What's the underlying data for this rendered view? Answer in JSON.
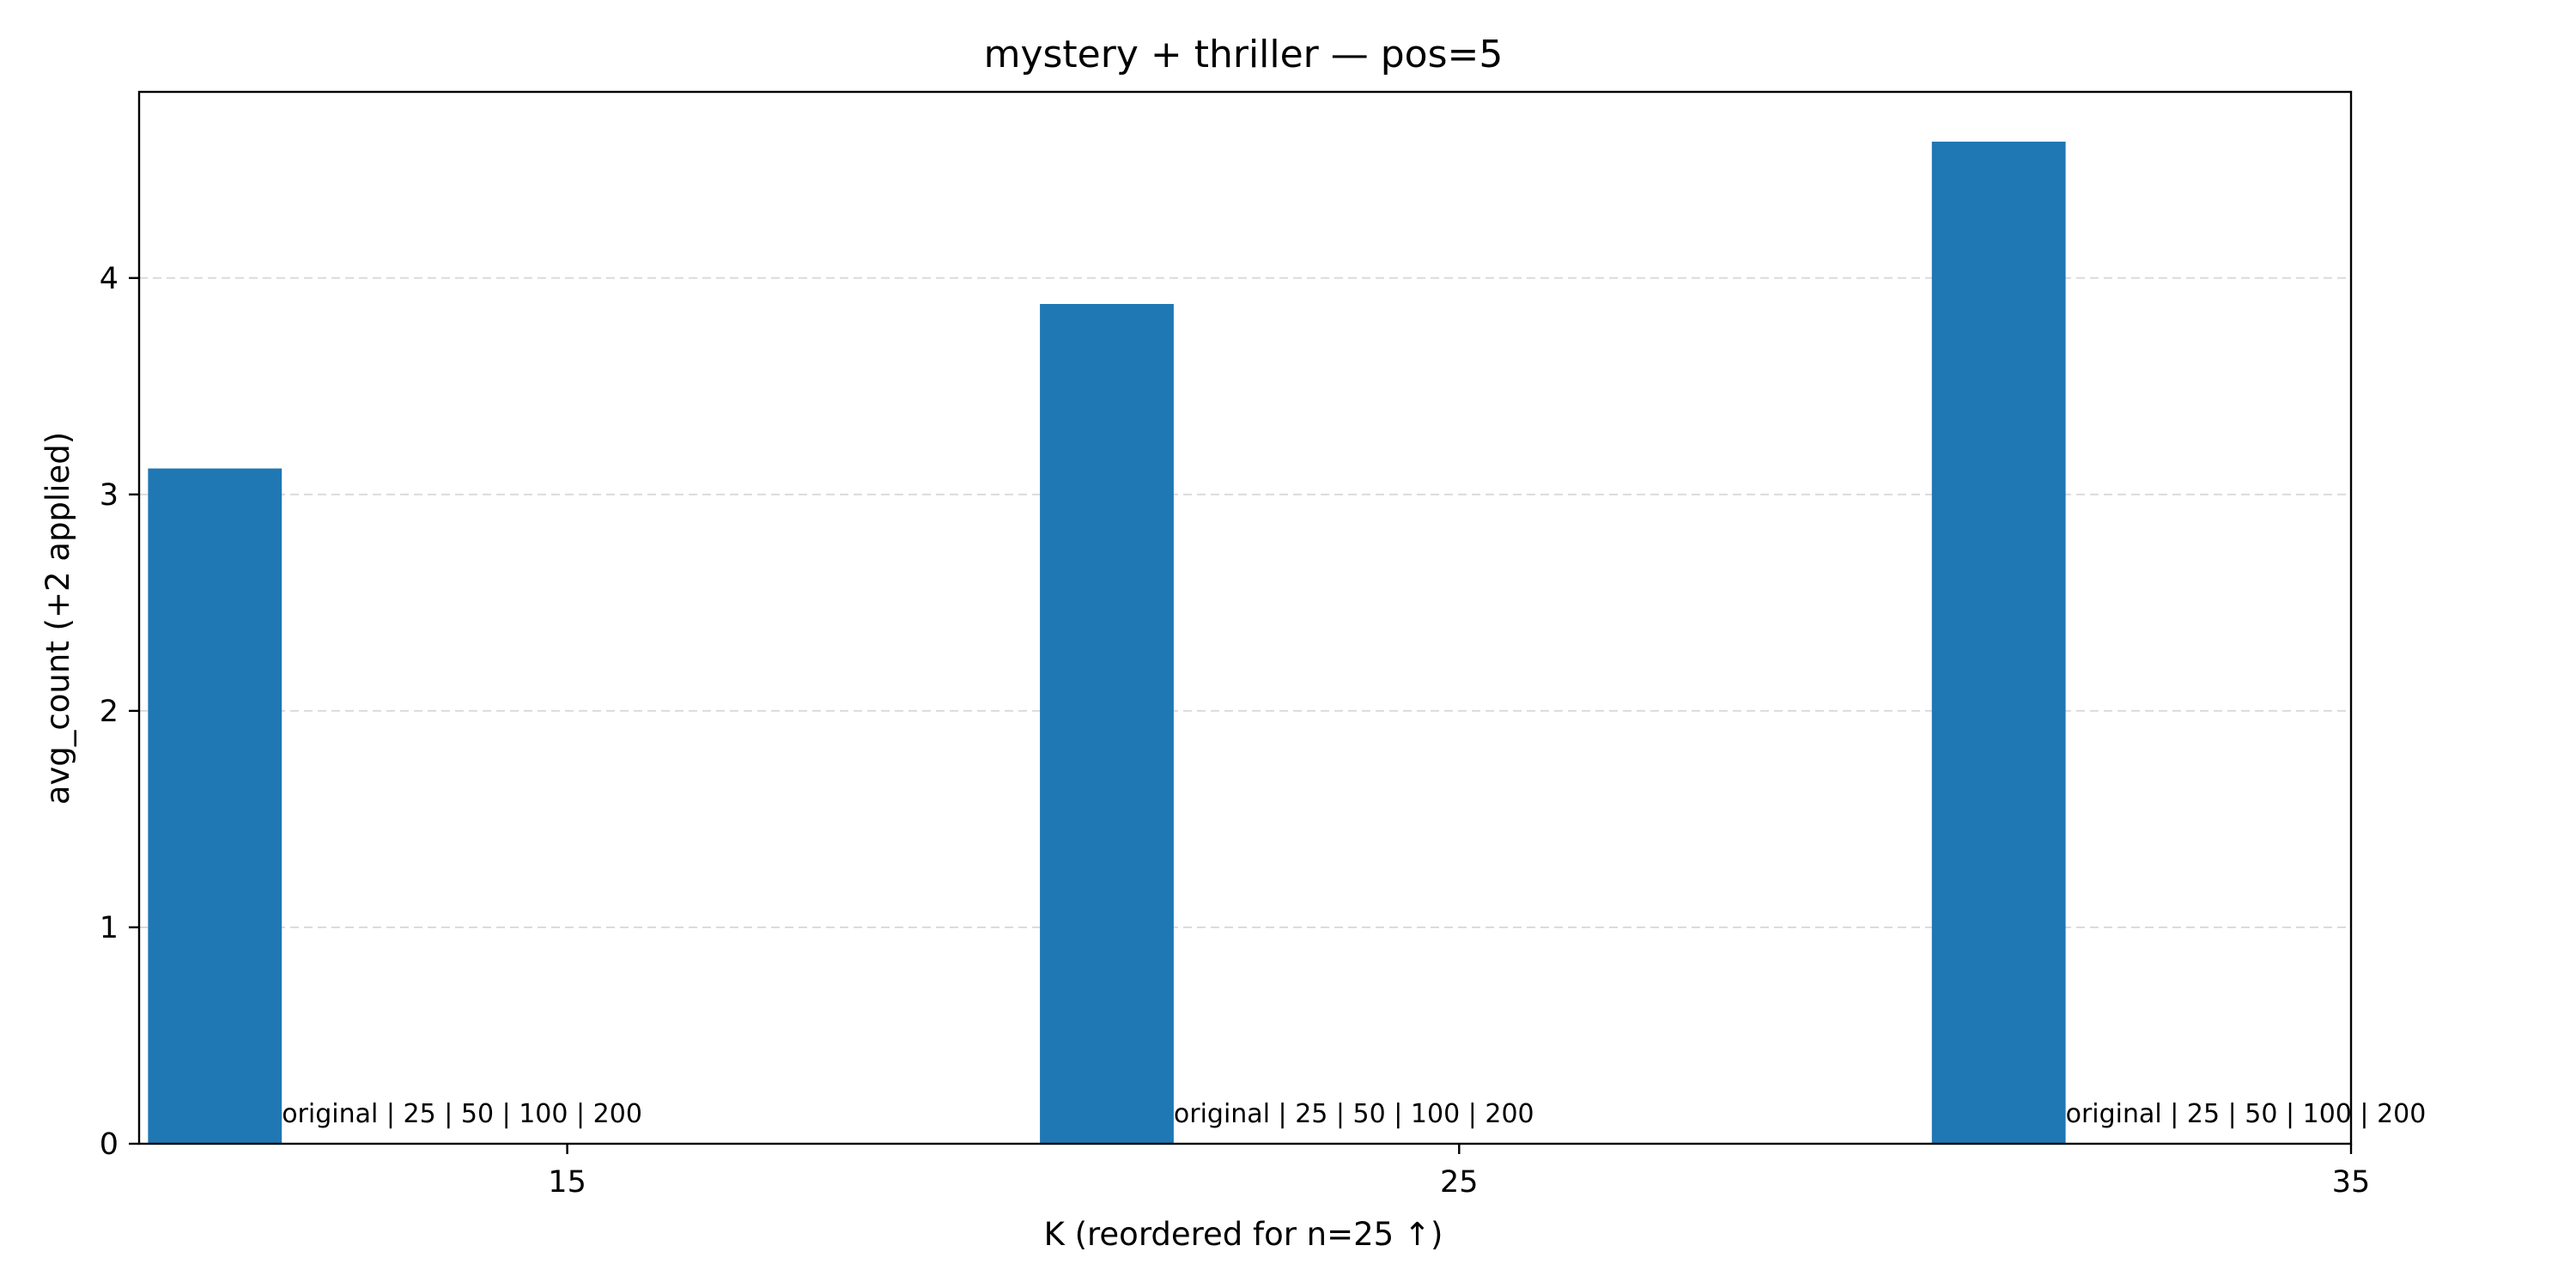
{
  "chart_data": {
    "type": "bar",
    "title": "mystery + thriller — pos=5",
    "xlabel": "K (reordered for n=25 ↑)",
    "ylabel": "avg_count (+2 applied)",
    "xlim": [
      10.2,
      35
    ],
    "ylim": [
      0,
      4.86
    ],
    "xticks": [
      15,
      25,
      35
    ],
    "yticks": [
      0,
      1,
      2,
      3,
      4
    ],
    "bar_width": 1.5,
    "grid": "y-dashed",
    "series": [
      {
        "color": "#1f77b4",
        "x": [
          11.05,
          21.05,
          31.05
        ],
        "values": [
          3.12,
          3.88,
          4.63
        ]
      }
    ],
    "annotations": [
      {
        "x": 11.8,
        "y": 0.1,
        "text": "original | 25 | 50 | 100 | 200"
      },
      {
        "x": 21.8,
        "y": 0.1,
        "text": "original | 25 | 50 | 100 | 200"
      },
      {
        "x": 31.8,
        "y": 0.1,
        "text": "original | 25 | 50 | 100 | 200"
      }
    ]
  }
}
